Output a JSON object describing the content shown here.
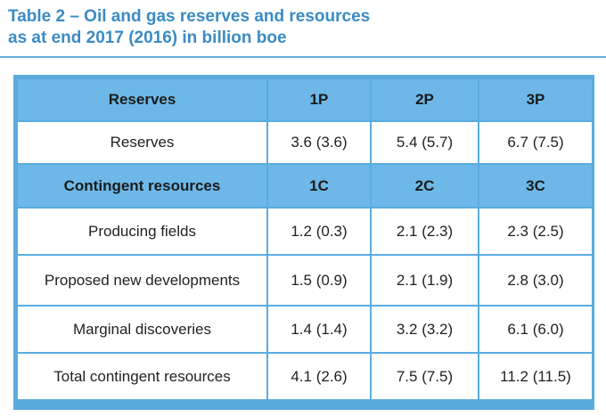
{
  "title": {
    "line1": "Table 2 – Oil and gas reserves and resources",
    "line2": "as at end 2017 (2016) in billion boe"
  },
  "colors": {
    "title": "#3b8bc4",
    "header_fill": "#6db8e8",
    "border": "#5aacdf"
  },
  "table": {
    "reserves_header": [
      "Reserves",
      "1P",
      "2P",
      "3P"
    ],
    "reserves_rows": [
      [
        "Reserves",
        "3.6 (3.6)",
        "5.4 (5.7)",
        "6.7 (7.5)"
      ]
    ],
    "contingent_header": [
      "Contingent resources",
      "1C",
      "2C",
      "3C"
    ],
    "contingent_rows": [
      [
        "Producing fields",
        "1.2 (0.3)",
        "2.1 (2.3)",
        "2.3 (2.5)"
      ],
      [
        "Proposed new developments",
        "1.5 (0.9)",
        "2.1 (1.9)",
        "2.8 (3.0)"
      ],
      [
        "Marginal discoveries",
        "1.4 (1.4)",
        "3.2 (3.2)",
        "6.1 (6.0)"
      ],
      [
        "Total contingent resources",
        "4.1 (2.6)",
        "7.5 (7.5)",
        "11.2 (11.5)"
      ]
    ]
  }
}
